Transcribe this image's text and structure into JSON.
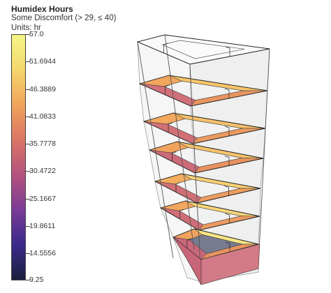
{
  "legend": {
    "title": "Humidex Hours",
    "subtitle": "Some Discomfort (> 29, ≤ 40)",
    "units": "Units: hr",
    "min": 9.25,
    "max": 57.0,
    "ticks": [
      "57.0",
      "51.6944",
      "46.3889",
      "41.0833",
      "35.7778",
      "30.4722",
      "25.1667",
      "19.8611",
      "14.5556",
      "9.25"
    ],
    "colors": [
      "#1a1f3d",
      "#3b2a8c",
      "#7b3c96",
      "#b4527e",
      "#d97565",
      "#f0a35c",
      "#f4d66c",
      "#f5f587"
    ]
  }
}
